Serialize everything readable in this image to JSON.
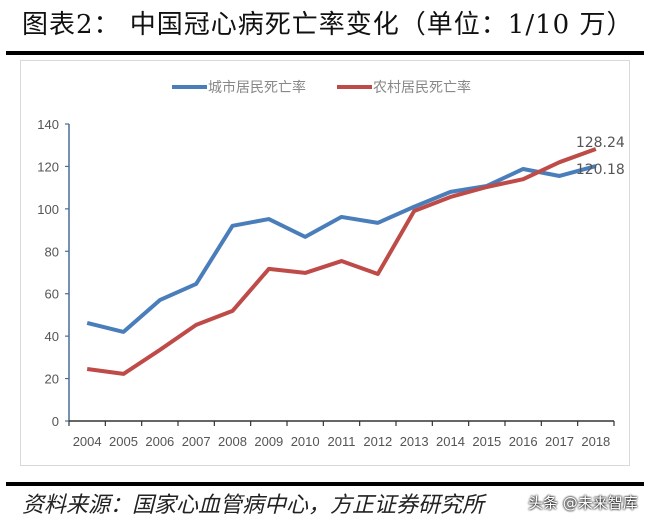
{
  "title": "图表2：  中国冠心病死亡率变化（单位：1/10 万）",
  "source": "资料来源：国家心血管病中心，方正证券研究所",
  "watermark": "头条 @未来智库",
  "chart_data": {
    "type": "line",
    "title": "",
    "xlabel": "",
    "ylabel": "",
    "ylim": [
      0,
      140
    ],
    "yticks": [
      0,
      20,
      40,
      60,
      80,
      100,
      120,
      140
    ],
    "grid": false,
    "legend": "top",
    "categories": [
      "2004",
      "2005",
      "2006",
      "2007",
      "2008",
      "2009",
      "2010",
      "2011",
      "2012",
      "2013",
      "2014",
      "2015",
      "2016",
      "2017",
      "2018"
    ],
    "series": [
      {
        "name": "城市居民死亡率",
        "color": "#4a7ebb",
        "values": [
          46.2,
          42.0,
          57.0,
          64.6,
          92.0,
          95.2,
          86.8,
          96.2,
          93.4,
          101.0,
          108.0,
          110.8,
          118.8,
          115.5,
          120.18
        ]
      },
      {
        "name": "农村居民死亡率",
        "color": "#be4b48",
        "values": [
          24.5,
          22.2,
          33.5,
          45.3,
          51.9,
          71.7,
          69.8,
          75.4,
          69.3,
          99.0,
          105.6,
          110.3,
          114.0,
          122.0,
          128.24
        ]
      }
    ],
    "data_labels": [
      {
        "series": "农村居民死亡率",
        "category": "2018",
        "text": "128.24"
      },
      {
        "series": "城市居民死亡率",
        "category": "2018",
        "text": "120.18"
      }
    ]
  }
}
